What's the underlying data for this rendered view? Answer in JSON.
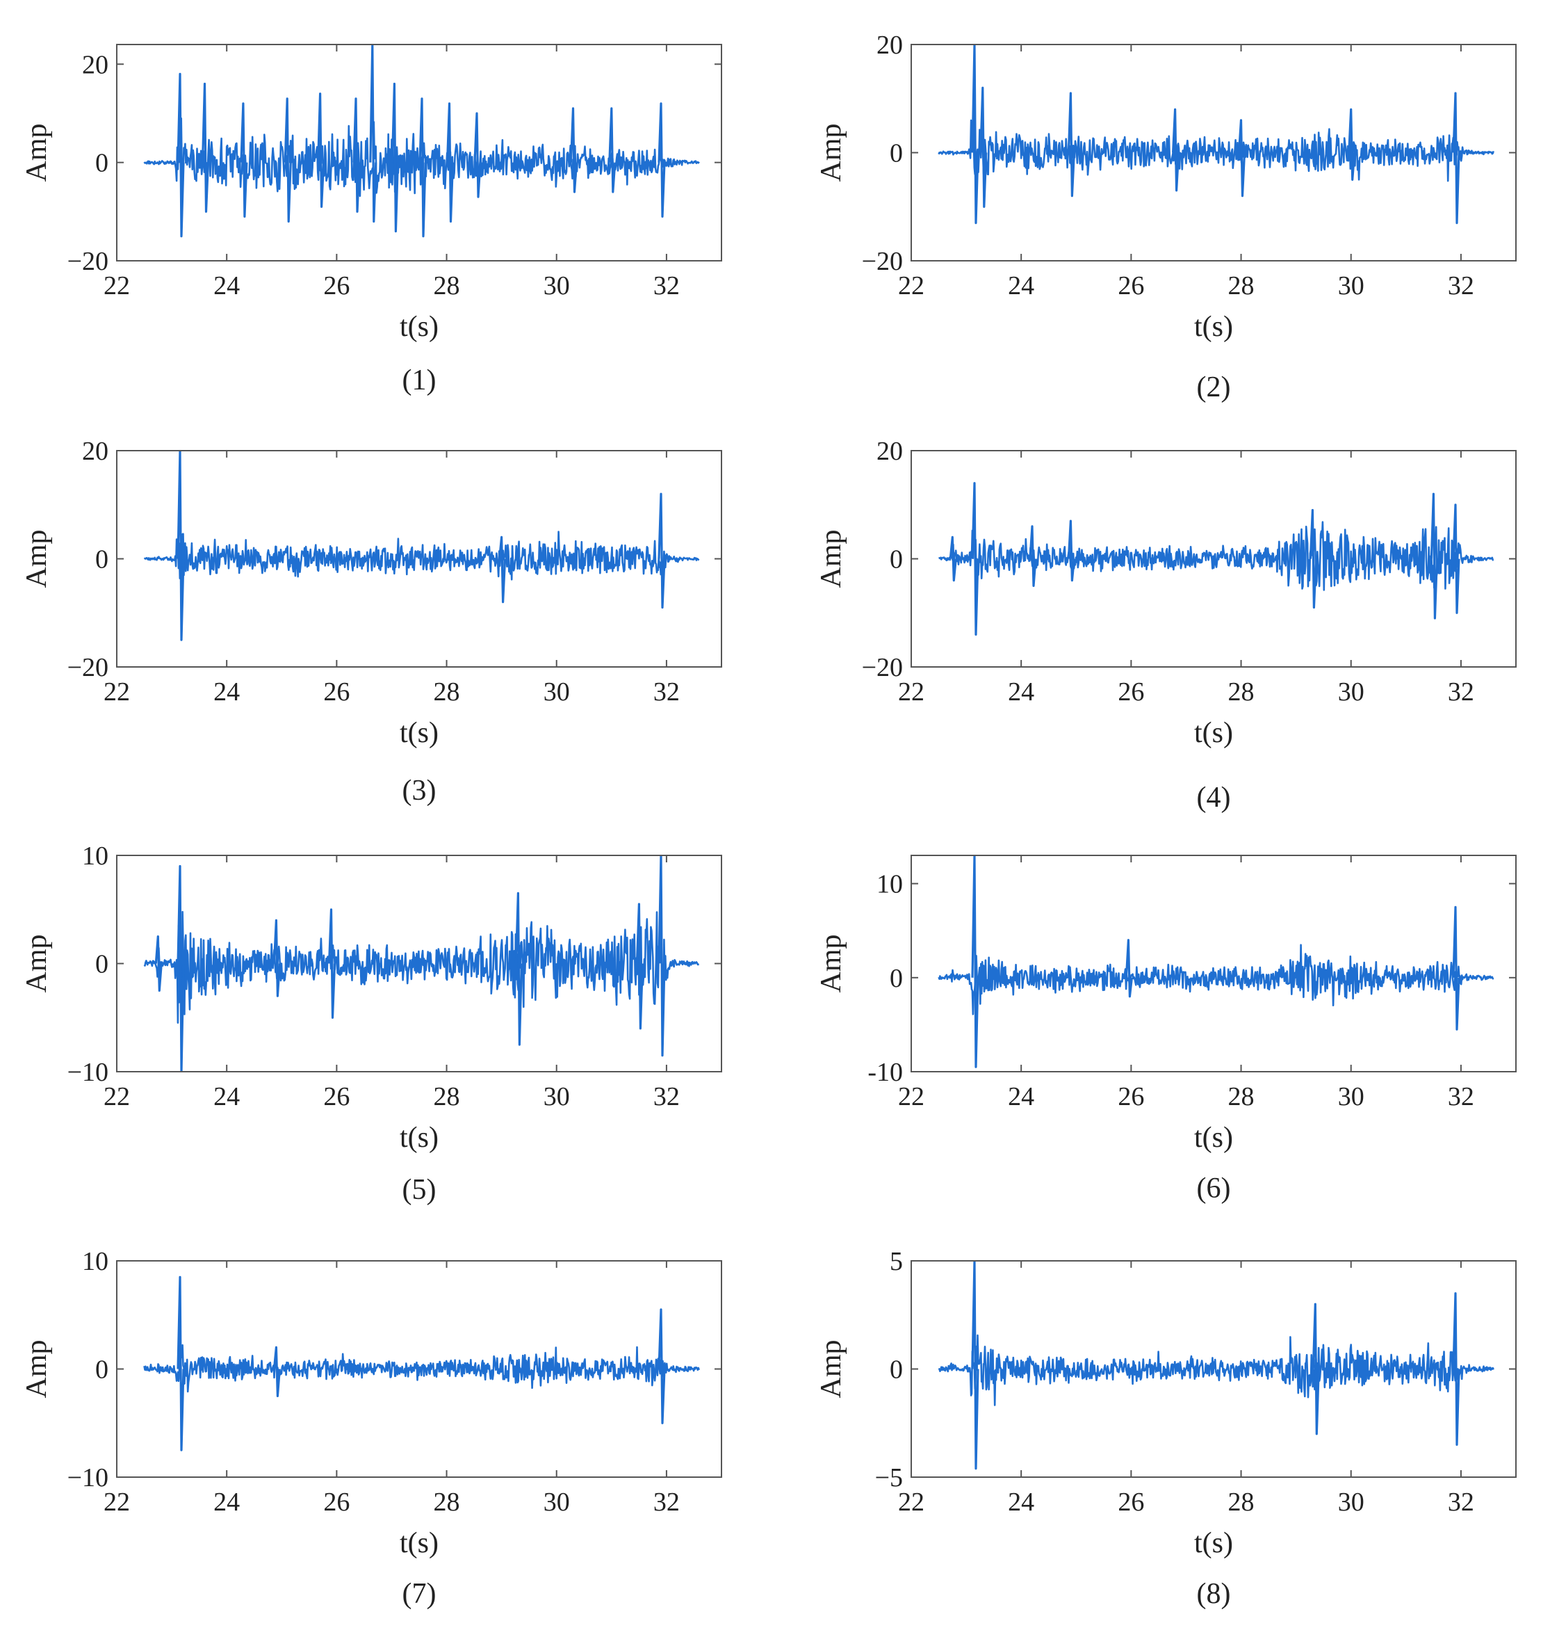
{
  "figure": {
    "line_color": "#1f6fd1",
    "axes_color": "#555555",
    "text_color": "#222222"
  },
  "chart_data": [
    {
      "type": "line",
      "caption": "(1)",
      "xlabel": "t(s)",
      "ylabel": "Amp",
      "xlim": [
        22,
        33
      ],
      "ylim": [
        -20,
        24
      ],
      "xticks": [
        22,
        24,
        26,
        28,
        30,
        32
      ],
      "xtick_labels": [
        "22",
        "24",
        "26",
        "28",
        "30",
        "32"
      ],
      "yticks": [
        -20,
        0,
        20
      ],
      "ytick_labels": [
        "−20",
        "0",
        "20"
      ],
      "grid": false,
      "series": [
        {
          "t_start": 22.5,
          "t_end": 32.6,
          "envelope_t": [
            22.5,
            23.05,
            23.1,
            23.2,
            23.5,
            24,
            24.5,
            25,
            25.5,
            26,
            26.3,
            26.6,
            26.65,
            26.8,
            27,
            27.5,
            28,
            28.5,
            29,
            29.5,
            30,
            30.5,
            31,
            31.5,
            31.85,
            31.9,
            32,
            32.3,
            32.6
          ],
          "envelope_amp": [
            0.4,
            0.4,
            8,
            5,
            5,
            6,
            6.5,
            6.5,
            6.5,
            7,
            8,
            8.5,
            10,
            8,
            7.5,
            6.5,
            5.5,
            4.5,
            4,
            4,
            4.5,
            4,
            3.5,
            3.5,
            4,
            3,
            1.5,
            0.6,
            0.3
          ],
          "spikes": [
            {
              "t": 23.15,
              "max": 18,
              "min": -15
            },
            {
              "t": 23.6,
              "max": 16,
              "min": -10
            },
            {
              "t": 24.3,
              "max": 12,
              "min": -11
            },
            {
              "t": 25.1,
              "max": 13,
              "min": -12
            },
            {
              "t": 25.7,
              "max": 14,
              "min": -9
            },
            {
              "t": 26.35,
              "max": 13,
              "min": -10
            },
            {
              "t": 26.65,
              "max": 24,
              "min": -12
            },
            {
              "t": 27.05,
              "max": 16,
              "min": -14
            },
            {
              "t": 27.55,
              "max": 13,
              "min": -15
            },
            {
              "t": 28.05,
              "max": 12,
              "min": -12
            },
            {
              "t": 28.55,
              "max": 10,
              "min": -7
            },
            {
              "t": 30.3,
              "max": 11,
              "min": -6
            },
            {
              "t": 31.0,
              "max": 11,
              "min": -6
            },
            {
              "t": 31.9,
              "max": 12,
              "min": -11
            }
          ]
        }
      ]
    },
    {
      "type": "line",
      "caption": "(2)",
      "xlabel": "t(s)",
      "ylabel": "Amp",
      "xlim": [
        22,
        33
      ],
      "ylim": [
        -20,
        20
      ],
      "xticks": [
        22,
        24,
        26,
        28,
        30,
        32
      ],
      "xtick_labels": [
        "22",
        "24",
        "26",
        "28",
        "30",
        "32"
      ],
      "yticks": [
        -20,
        0,
        20
      ],
      "ytick_labels": [
        "−20",
        "0",
        "20"
      ],
      "grid": false,
      "series": [
        {
          "t_start": 22.5,
          "t_end": 32.6,
          "envelope_t": [
            22.5,
            23.05,
            23.1,
            23.3,
            23.6,
            24,
            25,
            26,
            27,
            28,
            28.5,
            28.9,
            29.5,
            30,
            30.5,
            31,
            31.5,
            31.85,
            31.9,
            32.05,
            32.3,
            32.6
          ],
          "envelope_amp": [
            0.4,
            0.4,
            9,
            5.5,
            4.5,
            4,
            3.5,
            3.5,
            3.5,
            3,
            3,
            3.5,
            5,
            4,
            3.5,
            3,
            3,
            4,
            4,
            0.7,
            0.4,
            0.3
          ],
          "spikes": [
            {
              "t": 23.15,
              "max": 20,
              "min": -13
            },
            {
              "t": 23.3,
              "max": 12,
              "min": -10
            },
            {
              "t": 24.9,
              "max": 11,
              "min": -8
            },
            {
              "t": 26.8,
              "max": 8,
              "min": -7
            },
            {
              "t": 28.0,
              "max": 6,
              "min": -8
            },
            {
              "t": 30.0,
              "max": 8,
              "min": -5
            },
            {
              "t": 31.9,
              "max": 11,
              "min": -13
            }
          ]
        }
      ]
    },
    {
      "type": "line",
      "caption": "(3)",
      "xlabel": "t(s)",
      "ylabel": "Amp",
      "xlim": [
        22,
        33
      ],
      "ylim": [
        -20,
        20
      ],
      "xticks": [
        22,
        24,
        26,
        28,
        30,
        32
      ],
      "xtick_labels": [
        "22",
        "24",
        "26",
        "28",
        "30",
        "32"
      ],
      "yticks": [
        -20,
        0,
        20
      ],
      "ytick_labels": [
        "−20",
        "0",
        "20"
      ],
      "grid": false,
      "series": [
        {
          "t_start": 22.5,
          "t_end": 32.6,
          "envelope_t": [
            22.5,
            23.05,
            23.1,
            23.3,
            23.6,
            24,
            25,
            26,
            27,
            28,
            28.7,
            29,
            29.5,
            30,
            30.5,
            31,
            31.5,
            31.85,
            31.9,
            32.05,
            32.3,
            32.6
          ],
          "envelope_amp": [
            0.4,
            0.4,
            7,
            4.5,
            3.5,
            3,
            3,
            3,
            3,
            3,
            2.5,
            4,
            4,
            3.5,
            3.5,
            3,
            3.5,
            4,
            4,
            0.7,
            0.4,
            0.3
          ],
          "spikes": [
            {
              "t": 23.15,
              "max": 20,
              "min": -15
            },
            {
              "t": 29.0,
              "max": 4,
              "min": -8
            },
            {
              "t": 31.9,
              "max": 12,
              "min": -9
            }
          ]
        }
      ]
    },
    {
      "type": "line",
      "caption": "(4)",
      "xlabel": "t(s)",
      "ylabel": "Amp",
      "xlim": [
        22,
        33
      ],
      "ylim": [
        -20,
        20
      ],
      "xticks": [
        22,
        24,
        26,
        28,
        30,
        32
      ],
      "xtick_labels": [
        "22",
        "24",
        "26",
        "28",
        "30",
        "32"
      ],
      "yticks": [
        -20,
        0,
        20
      ],
      "ytick_labels": [
        "−20",
        "0",
        "20"
      ],
      "grid": false,
      "series": [
        {
          "t_start": 22.5,
          "t_end": 32.6,
          "envelope_t": [
            22.5,
            22.7,
            22.75,
            23.05,
            23.1,
            23.3,
            23.6,
            24,
            25,
            26,
            27,
            28,
            28.6,
            28.9,
            29.3,
            29.7,
            30,
            30.5,
            31,
            31.4,
            31.7,
            31.9,
            32.05,
            32.3,
            32.6
          ],
          "envelope_amp": [
            0.4,
            0.4,
            3,
            0.6,
            8,
            5,
            4,
            3,
            2.5,
            2.5,
            2.5,
            2.5,
            2.5,
            6,
            8,
            7,
            5,
            4,
            4.5,
            7,
            8,
            7,
            0.8,
            0.4,
            0.3
          ],
          "spikes": [
            {
              "t": 22.75,
              "max": 4,
              "min": -4
            },
            {
              "t": 23.15,
              "max": 14,
              "min": -14
            },
            {
              "t": 24.2,
              "max": 6,
              "min": -5
            },
            {
              "t": 24.9,
              "max": 7,
              "min": -4
            },
            {
              "t": 29.3,
              "max": 9,
              "min": -9
            },
            {
              "t": 31.5,
              "max": 12,
              "min": -11
            },
            {
              "t": 31.9,
              "max": 10,
              "min": -10
            }
          ]
        }
      ]
    },
    {
      "type": "line",
      "caption": "(5)",
      "xlabel": "t(s)",
      "ylabel": "Amp",
      "xlim": [
        22,
        33
      ],
      "ylim": [
        -10,
        10
      ],
      "xticks": [
        22,
        24,
        26,
        28,
        30,
        32
      ],
      "xtick_labels": [
        "22",
        "24",
        "26",
        "28",
        "30",
        "32"
      ],
      "yticks": [
        -10,
        0,
        10
      ],
      "ytick_labels": [
        "−10",
        "0",
        "10"
      ],
      "grid": false,
      "series": [
        {
          "t_start": 22.5,
          "t_end": 32.6,
          "envelope_t": [
            22.5,
            22.7,
            22.75,
            22.8,
            23.05,
            23.1,
            23.3,
            23.6,
            24,
            24.5,
            25,
            26,
            27,
            28,
            28.5,
            28.9,
            29.3,
            29.7,
            30,
            30.5,
            31,
            31.4,
            31.7,
            31.9,
            32.05,
            32.3,
            32.6
          ],
          "envelope_amp": [
            0.3,
            0.3,
            2,
            0.5,
            0.5,
            7,
            5,
            3.5,
            2.5,
            2,
            2,
            2,
            2,
            2,
            2,
            4.5,
            5,
            4.5,
            3.5,
            2.5,
            3,
            4.5,
            5,
            4.5,
            0.6,
            0.3,
            0.2
          ],
          "spikes": [
            {
              "t": 22.75,
              "max": 2.5,
              "min": -2.5
            },
            {
              "t": 23.15,
              "max": 9,
              "min": -10
            },
            {
              "t": 24.9,
              "max": 4,
              "min": -3
            },
            {
              "t": 25.9,
              "max": 5,
              "min": -5
            },
            {
              "t": 29.3,
              "max": 6.5,
              "min": -7.5
            },
            {
              "t": 31.5,
              "max": 5.5,
              "min": -6
            },
            {
              "t": 31.9,
              "max": 10,
              "min": -8.5
            }
          ]
        }
      ]
    },
    {
      "type": "line",
      "caption": "(6)",
      "xlabel": "t(s)",
      "ylabel": "Amp",
      "xlim": [
        22,
        33
      ],
      "ylim": [
        -10,
        13
      ],
      "xticks": [
        22,
        24,
        26,
        28,
        30,
        32
      ],
      "xtick_labels": [
        "22",
        "24",
        "26",
        "28",
        "30",
        "32"
      ],
      "yticks": [
        -10,
        0,
        10
      ],
      "ytick_labels": [
        "-10",
        "0",
        "10"
      ],
      "grid": false,
      "series": [
        {
          "t_start": 22.5,
          "t_end": 32.6,
          "envelope_t": [
            22.5,
            22.7,
            22.75,
            22.8,
            23.05,
            23.1,
            23.3,
            23.6,
            24,
            25,
            26,
            27,
            28,
            28.7,
            29,
            29.5,
            30,
            30.5,
            31,
            31.5,
            31.85,
            31.9,
            32.05,
            32.3,
            32.6
          ],
          "envelope_amp": [
            0.3,
            0.3,
            1,
            0.4,
            0.4,
            5,
            3,
            2,
            1.8,
            1.5,
            1.5,
            1.5,
            1.5,
            1.5,
            2.8,
            3,
            2.5,
            1.8,
            1.5,
            1.8,
            2.2,
            2,
            0.4,
            0.3,
            0.2
          ],
          "spikes": [
            {
              "t": 23.15,
              "max": 13,
              "min": -9.5
            },
            {
              "t": 25.95,
              "max": 4,
              "min": -2
            },
            {
              "t": 31.9,
              "max": 7.5,
              "min": -5.5
            }
          ]
        }
      ]
    },
    {
      "type": "line",
      "caption": "(7)",
      "xlabel": "t(s)",
      "ylabel": "Amp",
      "xlim": [
        22,
        33
      ],
      "ylim": [
        -10,
        10
      ],
      "xticks": [
        22,
        24,
        26,
        28,
        30,
        32
      ],
      "xtick_labels": [
        "22",
        "24",
        "26",
        "28",
        "30",
        "32"
      ],
      "yticks": [
        -10,
        0,
        10
      ],
      "ytick_labels": [
        "−10",
        "0",
        "10"
      ],
      "grid": false,
      "series": [
        {
          "t_start": 22.5,
          "t_end": 32.6,
          "envelope_t": [
            22.5,
            22.7,
            22.75,
            22.8,
            23.05,
            23.1,
            23.3,
            23.6,
            24,
            25,
            26,
            27,
            28,
            28.7,
            29,
            29.5,
            30,
            30.5,
            31,
            31.5,
            31.85,
            31.9,
            32.05,
            32.3,
            32.6
          ],
          "envelope_amp": [
            0.3,
            0.3,
            1,
            0.4,
            0.4,
            3.5,
            2,
            1.5,
            1.2,
            1,
            1,
            1,
            1,
            1,
            1.8,
            1.8,
            1.5,
            1.2,
            1.2,
            1.5,
            1.8,
            1.5,
            0.4,
            0.3,
            0.2
          ],
          "spikes": [
            {
              "t": 23.15,
              "max": 8.5,
              "min": -7.5
            },
            {
              "t": 24.9,
              "max": 2,
              "min": -2.5
            },
            {
              "t": 31.9,
              "max": 5.5,
              "min": -5
            }
          ]
        }
      ]
    },
    {
      "type": "line",
      "caption": "(8)",
      "xlabel": "t(s)",
      "ylabel": "Amp",
      "xlim": [
        22,
        33
      ],
      "ylim": [
        -5,
        5
      ],
      "xticks": [
        22,
        24,
        26,
        28,
        30,
        32
      ],
      "xtick_labels": [
        "22",
        "24",
        "26",
        "28",
        "30",
        "32"
      ],
      "yticks": [
        -5,
        0,
        5
      ],
      "ytick_labels": [
        "−5",
        "0",
        "5"
      ],
      "grid": false,
      "series": [
        {
          "t_start": 22.5,
          "t_end": 32.6,
          "envelope_t": [
            22.5,
            22.7,
            22.75,
            22.8,
            23.05,
            23.1,
            23.3,
            23.6,
            24,
            25,
            26,
            27,
            28,
            28.7,
            29,
            29.3,
            29.7,
            30,
            30.5,
            31,
            31.5,
            31.85,
            31.9,
            32.05,
            32.3,
            32.6
          ],
          "envelope_amp": [
            0.15,
            0.15,
            0.6,
            0.2,
            0.2,
            2.2,
            1.5,
            1,
            0.8,
            0.6,
            0.6,
            0.6,
            0.6,
            0.7,
            1.5,
            1.8,
            1.5,
            1.2,
            0.9,
            0.7,
            1,
            1.5,
            1.3,
            0.3,
            0.15,
            0.1
          ],
          "spikes": [
            {
              "t": 23.15,
              "max": 5,
              "min": -4.6
            },
            {
              "t": 29.35,
              "max": 3,
              "min": -3
            },
            {
              "t": 31.9,
              "max": 3.5,
              "min": -3.5
            }
          ]
        }
      ]
    }
  ]
}
